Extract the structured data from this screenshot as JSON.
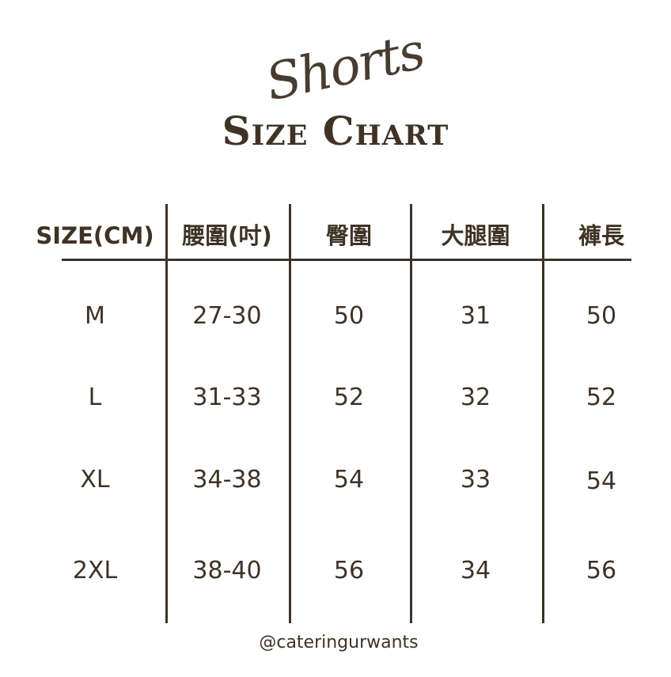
{
  "title": {
    "script": "Shorts",
    "main": "Size Chart"
  },
  "table": {
    "headers": [
      "SIZE(CM)",
      "腰圍(吋)",
      "臀圍",
      "大腿圍",
      "褲長"
    ],
    "rows": [
      [
        "M",
        "27-30",
        "50",
        "31",
        "50"
      ],
      [
        "L",
        "31-33",
        "52",
        "32",
        "52"
      ],
      [
        "XL",
        "34-38",
        "54",
        "33",
        "54"
      ],
      [
        "2XL",
        "38-40",
        "56",
        "34",
        "56"
      ]
    ]
  },
  "footer": "@cateringurwants",
  "colors": {
    "text": "#3f3226",
    "background": "#ffffff"
  }
}
